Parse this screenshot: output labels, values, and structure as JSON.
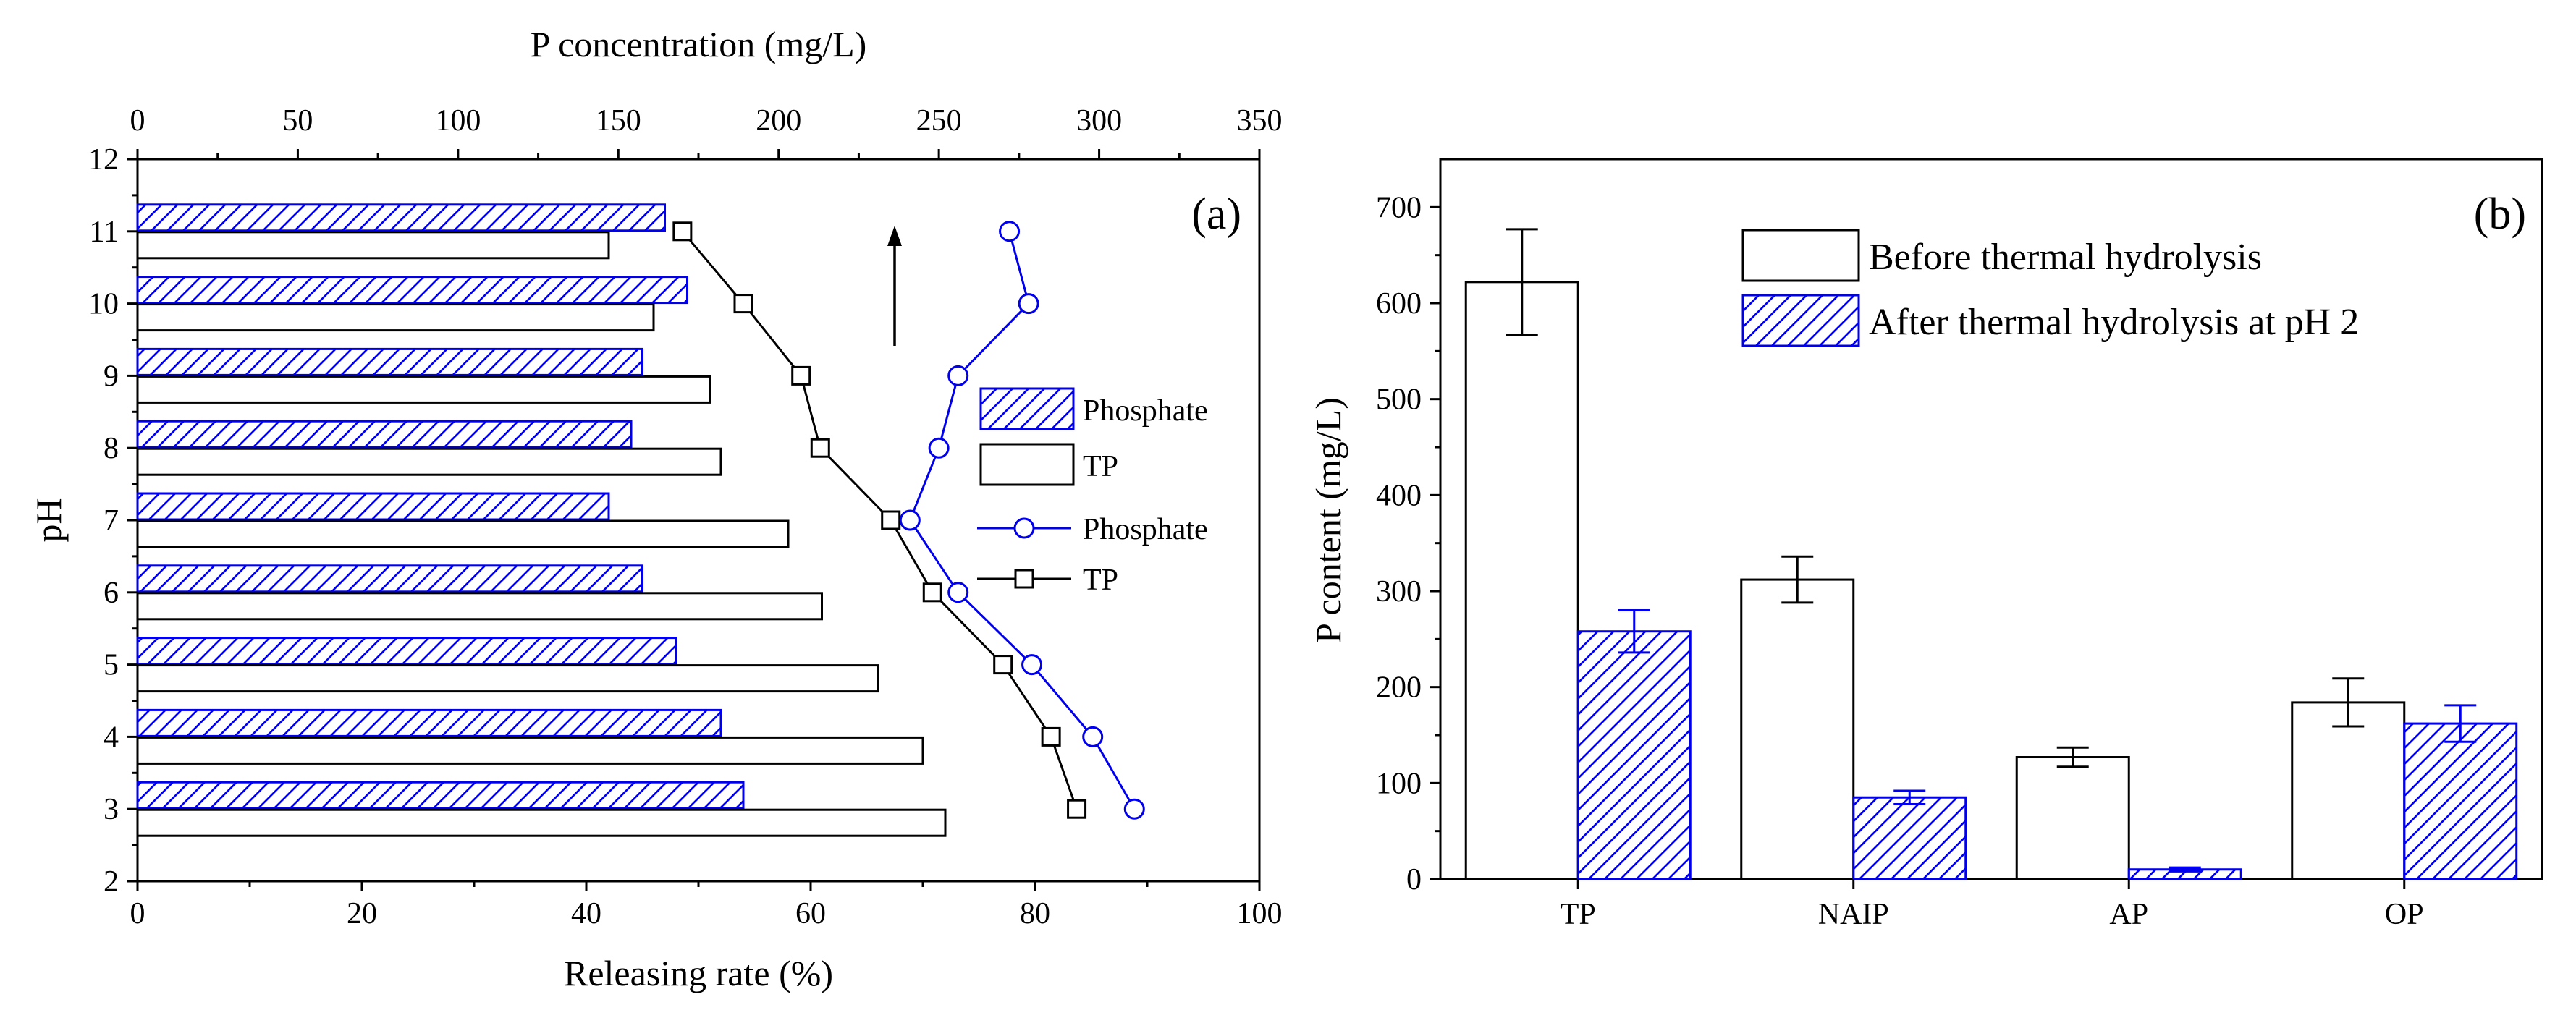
{
  "chart_data": [
    {
      "type": "bar",
      "panel": "(a)",
      "orientation": "horizontal",
      "xlabel": "Releasing rate (%)",
      "ylabel": "pH",
      "xlabel_top": "P concentration (mg/L)",
      "xlim": [
        0,
        100
      ],
      "ylim": [
        2,
        12
      ],
      "xlim_top": [
        0,
        350
      ],
      "x_ticks": [
        "0",
        "20",
        "40",
        "60",
        "80",
        "100"
      ],
      "y_ticks": [
        "2",
        "3",
        "4",
        "5",
        "6",
        "7",
        "8",
        "9",
        "10",
        "11",
        "12"
      ],
      "x_top_ticks": [
        "0",
        "50",
        "100",
        "150",
        "200",
        "250",
        "300",
        "350"
      ],
      "categories": [
        3,
        4,
        5,
        6,
        7,
        8,
        9,
        10,
        11
      ],
      "series": [
        {
          "name": "Phosphate",
          "kind": "bar",
          "axis": "Releasing rate (%)",
          "pattern": "hatch",
          "color": "#0000ee",
          "values": [
            54,
            52,
            48,
            45,
            42,
            44,
            45,
            49,
            47
          ]
        },
        {
          "name": "TP",
          "kind": "bar",
          "axis": "Releasing rate (%)",
          "pattern": "solid-outline",
          "color": "#000000",
          "values": [
            72,
            70,
            66,
            61,
            58,
            52,
            51,
            46,
            42
          ]
        },
        {
          "name": "Phosphate",
          "kind": "line",
          "axis": "P concentration (mg/L)",
          "marker": "circle",
          "color": "#0000ee",
          "x": [
            311,
            298,
            279,
            256,
            241,
            250,
            256,
            278,
            272
          ],
          "y": [
            3,
            4,
            5,
            6,
            7,
            8,
            9,
            10,
            11
          ]
        },
        {
          "name": "TP",
          "kind": "line",
          "axis": "P concentration (mg/L)",
          "marker": "square",
          "color": "#000000",
          "x": [
            293,
            285,
            270,
            248,
            235,
            213,
            207,
            189,
            170
          ],
          "y": [
            3,
            4,
            5,
            6,
            7,
            8,
            9,
            10,
            11
          ]
        }
      ],
      "legend": [
        "Phosphate",
        "TP",
        "Phosphate",
        "TP"
      ],
      "legend_position": "right-middle",
      "annotation": "arrow pointing up"
    },
    {
      "type": "bar",
      "panel": "(b)",
      "ylabel": "P content (mg/L)",
      "xlabel": "",
      "ylim": [
        0,
        750
      ],
      "y_ticks": [
        "0",
        "100",
        "200",
        "300",
        "400",
        "500",
        "600",
        "700"
      ],
      "categories": [
        "TP",
        "NAIP",
        "AP",
        "OP"
      ],
      "series": [
        {
          "name": "Before thermal hydrolysis",
          "pattern": "solid-outline",
          "color": "#000000",
          "values": [
            622,
            312,
            127,
            184
          ],
          "errors": [
            55,
            24,
            10,
            25
          ]
        },
        {
          "name": "After thermal hydrolysis at pH 2",
          "pattern": "hatch",
          "color": "#0000ee",
          "values": [
            258,
            85,
            10,
            162
          ],
          "errors": [
            22,
            7,
            2,
            19
          ]
        }
      ],
      "legend_position": "top-right"
    }
  ]
}
